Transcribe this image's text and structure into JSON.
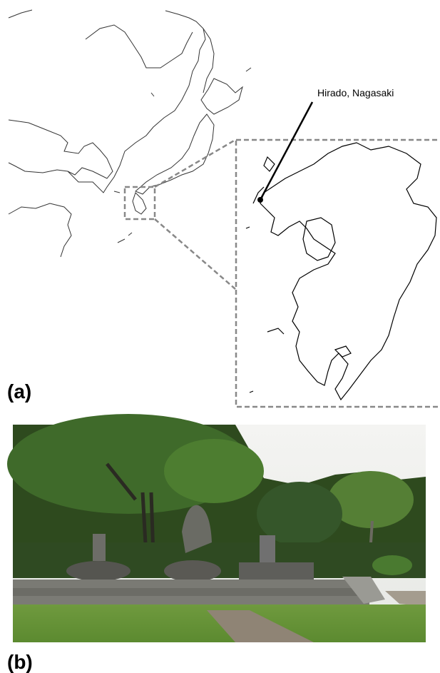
{
  "panel_a": {
    "label": "(a)",
    "annotation": "Hirado, Nagasaki"
  },
  "panel_b": {
    "label": "(b)"
  }
}
